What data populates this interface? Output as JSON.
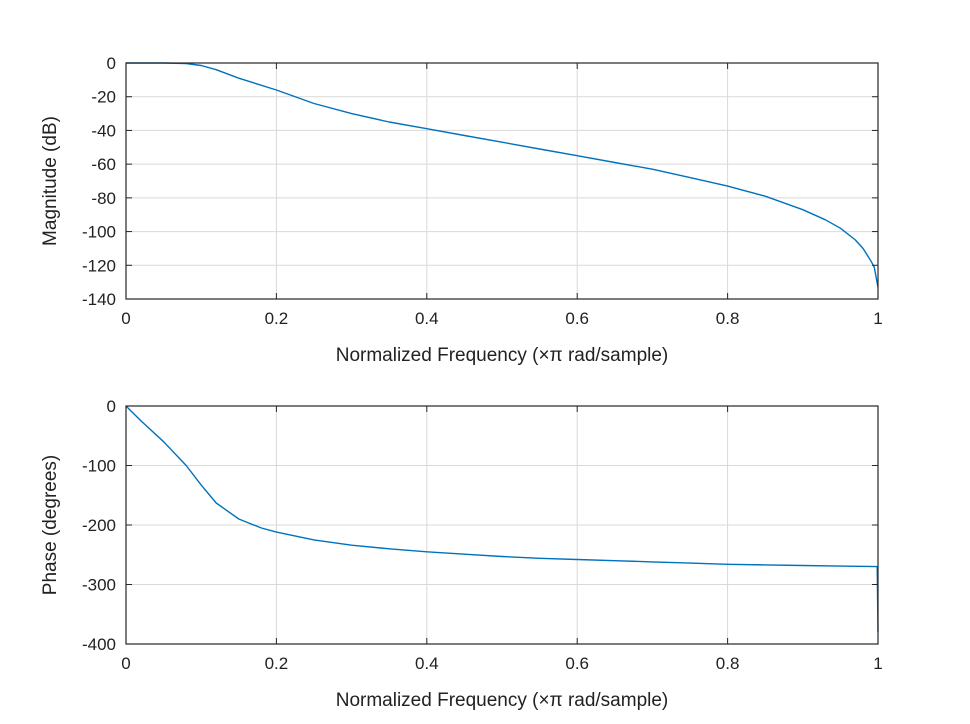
{
  "chart_data": [
    {
      "type": "line",
      "id": "magnitude",
      "title": "",
      "xlabel": "Normalized Frequency (×π rad/sample)",
      "ylabel": "Magnitude (dB)",
      "xlim": [
        0,
        1
      ],
      "ylim": [
        -140,
        0
      ],
      "xticks": [
        0,
        0.2,
        0.4,
        0.6,
        0.8,
        1
      ],
      "xtick_labels": [
        "0",
        "0.2",
        "0.4",
        "0.6",
        "0.8",
        "1"
      ],
      "yticks": [
        0,
        -20,
        -40,
        -60,
        -80,
        -100,
        -120,
        -140
      ],
      "ytick_labels": [
        "0",
        "-20",
        "-40",
        "-60",
        "-80",
        "-100",
        "-120",
        "-140"
      ],
      "grid": true,
      "series": [
        {
          "name": "Magnitude",
          "color": "#0072BD",
          "x": [
            0,
            0.02,
            0.05,
            0.08,
            0.1,
            0.12,
            0.15,
            0.2,
            0.25,
            0.3,
            0.35,
            0.4,
            0.45,
            0.5,
            0.55,
            0.6,
            0.65,
            0.7,
            0.75,
            0.8,
            0.85,
            0.9,
            0.93,
            0.95,
            0.97,
            0.98,
            0.99,
            0.995,
            1.0
          ],
          "y": [
            0,
            0,
            0,
            -0.3,
            -1.5,
            -4,
            -9,
            -16,
            -24,
            -30,
            -35,
            -39,
            -43,
            -47,
            -51,
            -55,
            -59,
            -63,
            -68,
            -73,
            -79,
            -87,
            -93,
            -98,
            -105,
            -110,
            -117,
            -121,
            -133
          ]
        }
      ]
    },
    {
      "type": "line",
      "id": "phase",
      "title": "",
      "xlabel": "Normalized Frequency (×π rad/sample)",
      "ylabel": "Phase (degrees)",
      "xlim": [
        0,
        1
      ],
      "ylim": [
        -400,
        0
      ],
      "xticks": [
        0,
        0.2,
        0.4,
        0.6,
        0.8,
        1
      ],
      "xtick_labels": [
        "0",
        "0.2",
        "0.4",
        "0.6",
        "0.8",
        "1"
      ],
      "yticks": [
        0,
        -100,
        -200,
        -300,
        -400
      ],
      "ytick_labels": [
        "0",
        "-100",
        "-200",
        "-300",
        "-400"
      ],
      "grid": true,
      "series": [
        {
          "name": "Phase",
          "color": "#0072BD",
          "x": [
            0,
            0.02,
            0.05,
            0.08,
            0.1,
            0.12,
            0.15,
            0.18,
            0.2,
            0.25,
            0.3,
            0.35,
            0.4,
            0.45,
            0.5,
            0.55,
            0.6,
            0.65,
            0.7,
            0.75,
            0.8,
            0.85,
            0.9,
            0.95,
            0.999,
            1.0
          ],
          "y": [
            0,
            -25,
            -60,
            -100,
            -133,
            -163,
            -190,
            -205,
            -212,
            -225,
            -234,
            -240,
            -245,
            -249,
            -253,
            -256,
            -258,
            -260,
            -262,
            -264,
            -266,
            -267,
            -268,
            -269,
            -270,
            -380
          ]
        }
      ]
    }
  ]
}
